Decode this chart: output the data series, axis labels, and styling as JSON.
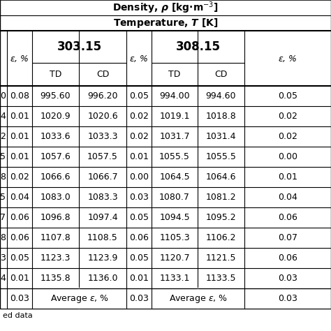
{
  "title1": "Density, ρ [kg·m⁻³]",
  "title2": "Temperature, T [K]",
  "temp1": "303.15",
  "temp2": "308.15",
  "eps_label": "ε, %",
  "sub_cols": [
    "TD",
    "CD"
  ],
  "rows": [
    [
      "0",
      "0.08",
      "995.60",
      "996.20",
      "0.05",
      "994.00",
      "994.60",
      "0.05"
    ],
    [
      "4",
      "0.01",
      "1020.9",
      "1020.6",
      "0.02",
      "1019.1",
      "1018.8",
      "0.02"
    ],
    [
      "2",
      "0.01",
      "1033.6",
      "1033.3",
      "0.02",
      "1031.7",
      "1031.4",
      "0.02"
    ],
    [
      "5",
      "0.01",
      "1057.6",
      "1057.5",
      "0.01",
      "1055.5",
      "1055.5",
      "0.00"
    ],
    [
      "8",
      "0.02",
      "1066.6",
      "1066.7",
      "0.00",
      "1064.5",
      "1064.6",
      "0.01"
    ],
    [
      "5",
      "0.04",
      "1083.0",
      "1083.3",
      "0.03",
      "1080.7",
      "1081.2",
      "0.04"
    ],
    [
      "7",
      "0.06",
      "1096.8",
      "1097.4",
      "0.05",
      "1094.5",
      "1095.2",
      "0.06"
    ],
    [
      "8",
      "0.06",
      "1107.8",
      "1108.5",
      "0.06",
      "1105.3",
      "1106.2",
      "0.07"
    ],
    [
      "3",
      "0.05",
      "1123.3",
      "1123.9",
      "0.05",
      "1120.7",
      "1121.5",
      "0.06"
    ],
    [
      "4",
      "0.01",
      "1135.8",
      "1136.0",
      "0.01",
      "1133.1",
      "1133.5",
      "0.03"
    ]
  ],
  "avg_eps1": "0.03",
  "avg_eps2": "0.03",
  "avg_eps3": "0.03",
  "footer": "ed data",
  "bg": "#ffffff",
  "fg": "#000000"
}
